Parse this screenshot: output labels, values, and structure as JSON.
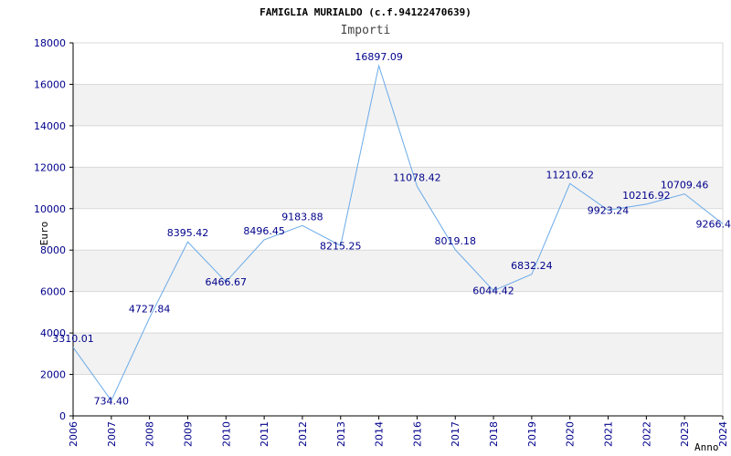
{
  "chart_data": {
    "type": "line",
    "title": "FAMIGLIA MURIALDO (c.f.94122470639)",
    "subtitle": "Importi",
    "xlabel": "Anno",
    "ylabel": "Euro",
    "ylim": [
      0,
      18000
    ],
    "yticks": [
      0,
      2000,
      4000,
      6000,
      8000,
      10000,
      12000,
      14000,
      16000,
      18000
    ],
    "categories": [
      "2006",
      "2007",
      "2008",
      "2009",
      "2010",
      "2011",
      "2012",
      "2013",
      "2014",
      "2016",
      "2017",
      "2018",
      "2019",
      "2020",
      "2021",
      "2022",
      "2023",
      "2024"
    ],
    "values": [
      3310.01,
      734.4,
      4727.84,
      8395.42,
      6466.67,
      8496.45,
      9183.88,
      8215.25,
      16897.09,
      11078.42,
      8019.18,
      6044.42,
      6832.24,
      11210.62,
      9923.24,
      10216.92,
      10709.46,
      9266.4
    ],
    "labels": [
      "3310.01",
      "734.40",
      "4727.84",
      "8395.42",
      "6466.67",
      "8496.45",
      "9183.88",
      "8215.25",
      "16897.09",
      "11078.42",
      "8019.18",
      "6044.42",
      "6832.24",
      "11210.62",
      "9923.24",
      "10216.92",
      "10709.46",
      "9266.4"
    ],
    "series_color": "#6aaae8",
    "band_color": "#f2f2f2",
    "grid": true
  }
}
